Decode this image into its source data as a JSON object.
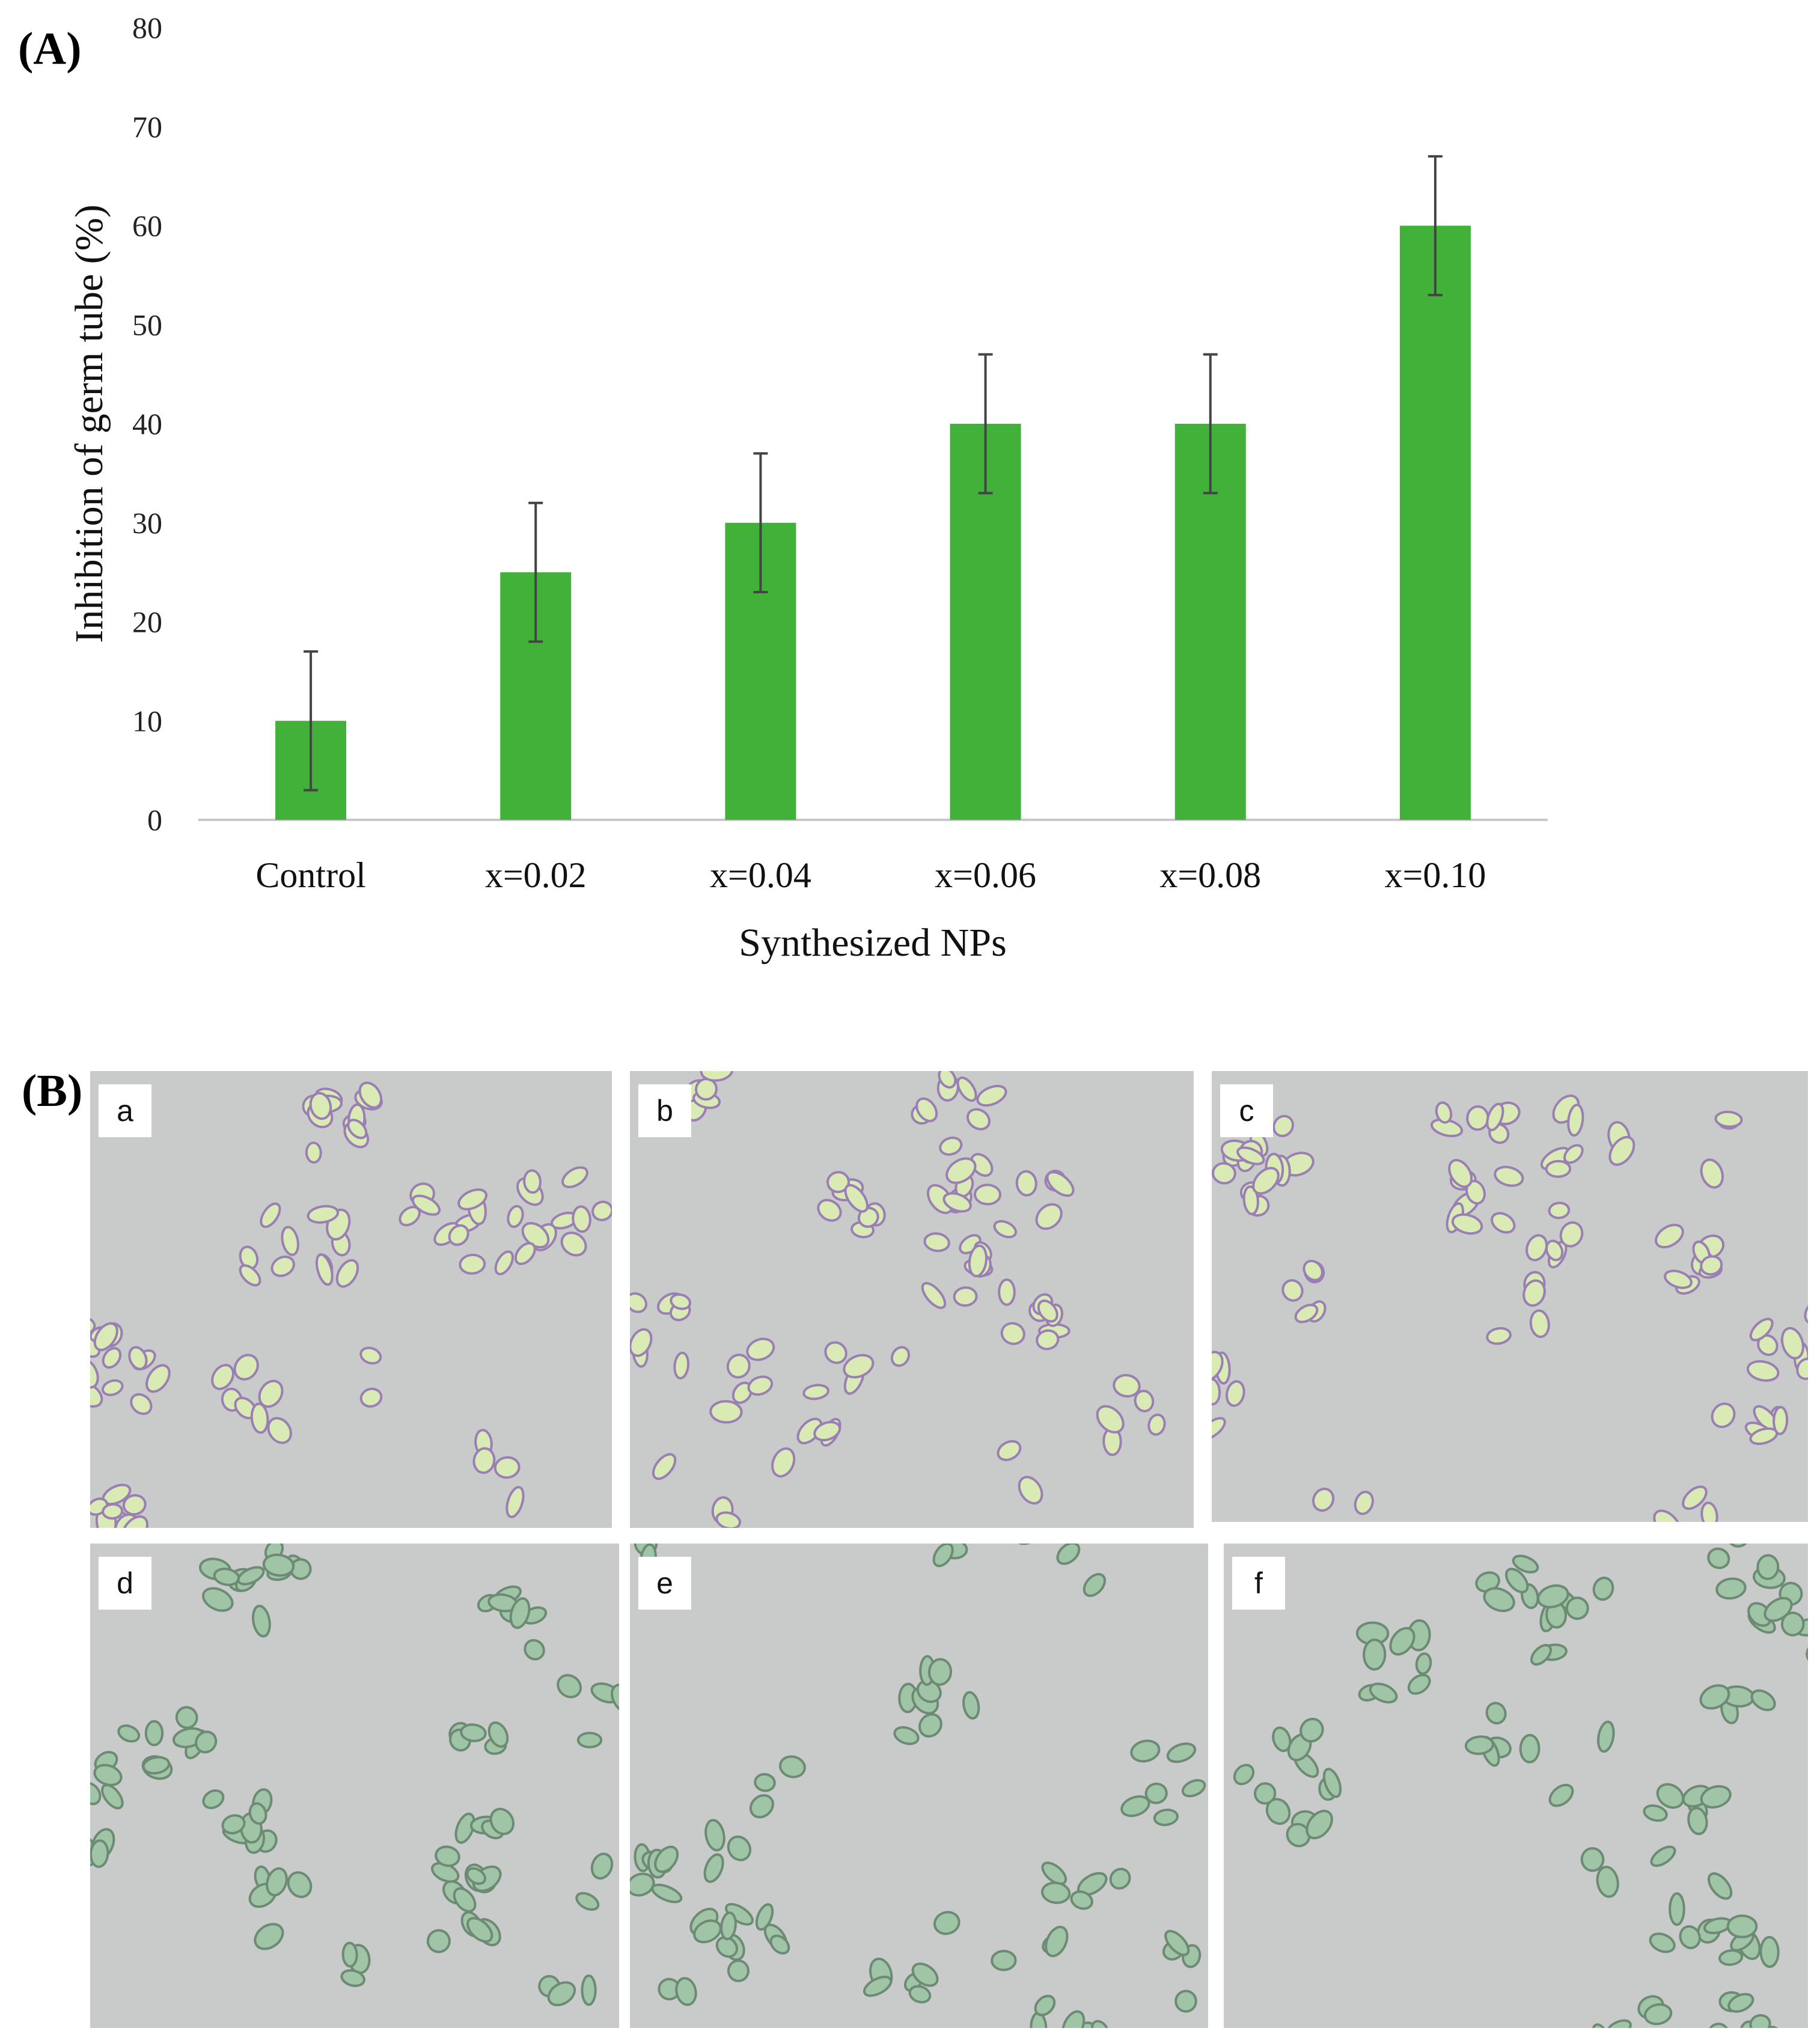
{
  "panel_a_label": "(A)",
  "panel_b_label": "(B)",
  "chart_data": {
    "type": "bar",
    "title": "",
    "xlabel": "Synthesized NPs",
    "ylabel": "Inhibition of germ tube (%)",
    "categories": [
      "Control",
      "x=0.02",
      "x=0.04",
      "x=0.06",
      "x=0.08",
      "x=0.10"
    ],
    "values": [
      10,
      25,
      30,
      40,
      40,
      60
    ],
    "errors": [
      7,
      7,
      7,
      7,
      7,
      7
    ],
    "ylim": [
      0,
      80
    ],
    "yticks": [
      0,
      10,
      20,
      30,
      40,
      50,
      60,
      70,
      80
    ],
    "grid": false,
    "bar_color": "#41b13a",
    "error_color": "#444444"
  },
  "micrographs": [
    {
      "label": "a"
    },
    {
      "label": "b"
    },
    {
      "label": "c"
    },
    {
      "label": "d"
    },
    {
      "label": "e"
    },
    {
      "label": "f"
    }
  ]
}
